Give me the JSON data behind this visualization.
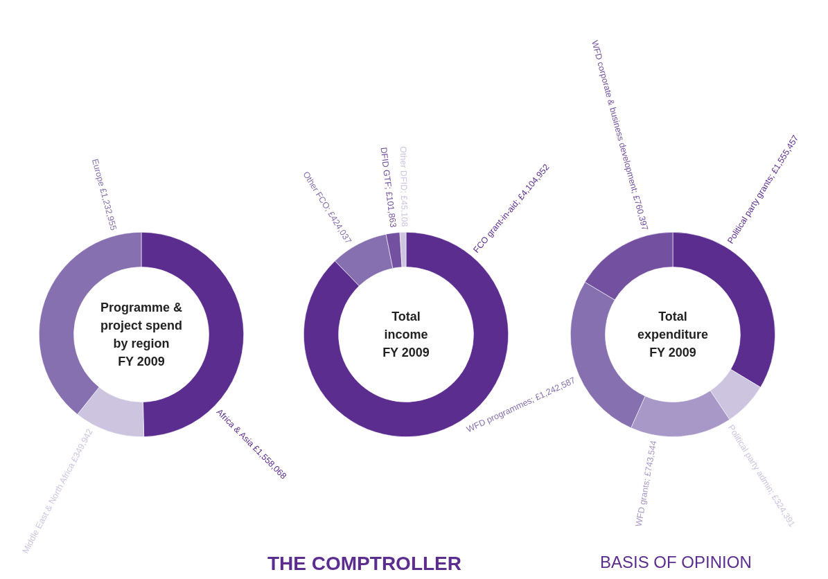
{
  "chart_data": [
    {
      "type": "donut",
      "title": "Programme & project spend by region",
      "subtitle": "FY 2009",
      "categories": [
        "Africa & Asia £1,558,068",
        "Middle East & North Africa £349,942",
        "Europe £1,232,955"
      ],
      "values": [
        1558068,
        349942,
        1232955
      ],
      "colors": [
        "#5b2d8e",
        "#cdc4e0",
        "#8670b0"
      ]
    },
    {
      "type": "donut",
      "title": "Total income",
      "subtitle": "FY 2009",
      "categories": [
        "FCO grant-in-aid; £4,104,952",
        "Other FCO; £424,037",
        "DFID GTF; £101,863",
        "Other DFID; £45,108"
      ],
      "values": [
        4104952,
        424037,
        101863,
        45108
      ],
      "colors": [
        "#5b2d8e",
        "#8670b0",
        "#7451a0",
        "#cdc4e0"
      ],
      "annotations": [
        "THE COMPTROLLER"
      ]
    },
    {
      "type": "donut",
      "title": "Total expenditure",
      "subtitle": "FY 2009",
      "categories": [
        "Political party grants; £1,555,457",
        "Political party admin; £324,391",
        "WFD grants; £743,544",
        "WFD programmes; £1,242,587",
        "WFD corporate & business development; £760,397"
      ],
      "values": [
        1555457,
        324391,
        743544,
        1242587,
        760397
      ],
      "colors": [
        "#5b2d8e",
        "#cdc4e0",
        "#a898c8",
        "#8670b0",
        "#7451a0"
      ],
      "annotations": [
        "BASIS OF OPINION"
      ]
    }
  ]
}
